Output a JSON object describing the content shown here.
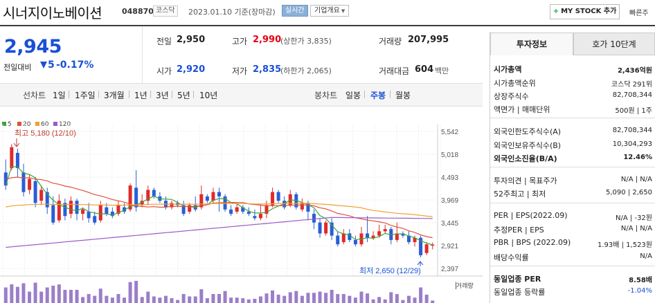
{
  "header": {
    "title": "시너지이노베이션",
    "code": "048870",
    "market": "코스닥",
    "as_of": "2023.01.10  기준(장마감)",
    "realtime_label": "실시간",
    "company_btn": "기업개요",
    "mystock_btn": "MY STOCK 추가",
    "quick_label": "빠른주"
  },
  "summary": {
    "price": "2,945",
    "change_label": "전일대비",
    "change": "5",
    "change_rate": "-0.17%",
    "prev_close_label": "전일",
    "prev_close": "2,950",
    "high_label": "고가",
    "high": "2,990",
    "high_limit": "(상한가 3,835)",
    "volume_label": "거래량",
    "volume": "207,995",
    "open_label": "시가",
    "open": "2,920",
    "low_label": "저가",
    "low": "2,835",
    "low_limit": "(하한가 2,065)",
    "amount_label": "거래대금",
    "amount": "604",
    "amount_unit": "백만"
  },
  "toolbar": {
    "line_chart_label": "선차트",
    "line_periods": [
      "1일",
      "1주일",
      "3개월",
      "1년",
      "3년",
      "5년",
      "10년"
    ],
    "candle_label": "봉차트",
    "candle_periods": [
      "일봉",
      "주봉",
      "월봉"
    ],
    "selected": "주봉"
  },
  "chart_legend": [
    {
      "label": "5",
      "color": "#3aa53a"
    },
    {
      "label": "20",
      "color": "#e0503c"
    },
    {
      "label": "60",
      "color": "#f0a030"
    },
    {
      "label": "120",
      "color": "#9a5ac8"
    }
  ],
  "chart_data": {
    "type": "candlestick",
    "y_ticks": [
      "5,542",
      "5,018",
      "4,493",
      "3,969",
      "3,445",
      "2,921",
      "2,397"
    ],
    "annotations": {
      "high": "최고 5,180 (12/10)",
      "low": "최저 2,650 (12/29)"
    },
    "volume_label": "거래량",
    "ylim": [
      2397,
      5542
    ]
  },
  "info_panel": {
    "tabs": [
      "투자정보",
      "호가 10단계"
    ],
    "rows": [
      {
        "label": "시가총액",
        "value": "2,436억원",
        "bold": true
      },
      {
        "label": "시가총액순위",
        "value": "코스닥 291위"
      },
      {
        "label": "상장주식수",
        "value": "82,708,344"
      },
      {
        "label": "액면가 | 매매단위",
        "value": "500원 | 1주"
      },
      {
        "label": "외국인한도주식수(A)",
        "value": "82,708,344"
      },
      {
        "label": "외국인보유주식수(B)",
        "value": "10,304,293"
      },
      {
        "label": "외국인소진율(B/A)",
        "value": "12.46%",
        "bold": true
      },
      {
        "label": "투자의견 | 목표주가",
        "value": "N/A | N/A"
      },
      {
        "label": "52주최고 | 최저",
        "value": "5,090 | 2,650"
      },
      {
        "label": "PER | EPS(2022.09)",
        "value": "N/A | -32원"
      },
      {
        "label": "추정PER | EPS",
        "value": "N/A | N/A"
      },
      {
        "label": "PBR | BPS (2022.09)",
        "value": "1.93배 | 1,523원"
      },
      {
        "label": "배당수익률",
        "value": "N/A"
      },
      {
        "label": "동일업종 PER",
        "value": "8.58배",
        "bold": true
      },
      {
        "label": "동일업종 등락률",
        "value": "-1.04%",
        "down": true
      }
    ]
  }
}
